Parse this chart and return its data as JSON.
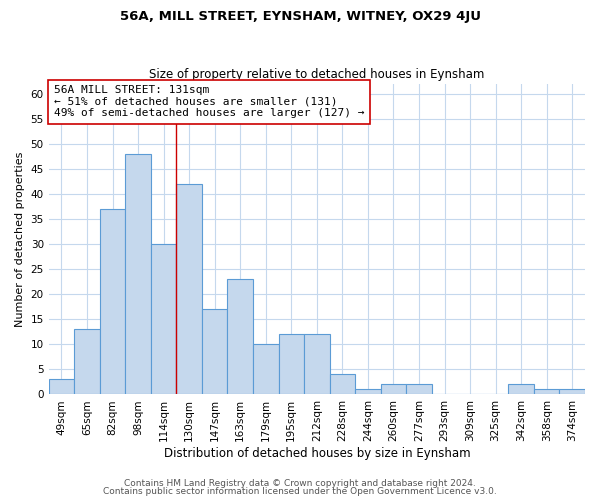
{
  "title": "56A, MILL STREET, EYNSHAM, WITNEY, OX29 4JU",
  "subtitle": "Size of property relative to detached houses in Eynsham",
  "xlabel": "Distribution of detached houses by size in Eynsham",
  "ylabel": "Number of detached properties",
  "categories": [
    "49sqm",
    "65sqm",
    "82sqm",
    "98sqm",
    "114sqm",
    "130sqm",
    "147sqm",
    "163sqm",
    "179sqm",
    "195sqm",
    "212sqm",
    "228sqm",
    "244sqm",
    "260sqm",
    "277sqm",
    "293sqm",
    "309sqm",
    "325sqm",
    "342sqm",
    "358sqm",
    "374sqm"
  ],
  "values": [
    3,
    13,
    37,
    48,
    30,
    42,
    17,
    23,
    10,
    12,
    12,
    4,
    1,
    2,
    2,
    0,
    0,
    0,
    2,
    1,
    1
  ],
  "bar_color": "#c5d8ed",
  "bar_edge_color": "#5b9bd5",
  "highlight_line_color": "#cc0000",
  "annotation_line1": "56A MILL STREET: 131sqm",
  "annotation_line2": "← 51% of detached houses are smaller (131)",
  "annotation_line3": "49% of semi-detached houses are larger (127) →",
  "annotation_box_color": "#ffffff",
  "annotation_box_edge_color": "#cc0000",
  "ylim": [
    0,
    62
  ],
  "yticks": [
    0,
    5,
    10,
    15,
    20,
    25,
    30,
    35,
    40,
    45,
    50,
    55,
    60
  ],
  "footer1": "Contains HM Land Registry data © Crown copyright and database right 2024.",
  "footer2": "Contains public sector information licensed under the Open Government Licence v3.0.",
  "background_color": "#ffffff",
  "grid_color": "#c5d8ed",
  "title_fontsize": 9.5,
  "subtitle_fontsize": 8.5,
  "xlabel_fontsize": 8.5,
  "ylabel_fontsize": 8,
  "tick_fontsize": 7.5,
  "annotation_fontsize": 8,
  "footer_fontsize": 6.5
}
